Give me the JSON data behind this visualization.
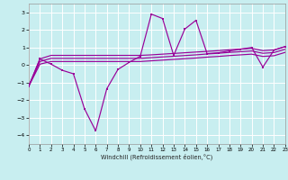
{
  "xlabel": "Windchill (Refroidissement éolien,°C)",
  "bg_color": "#c8eef0",
  "grid_color": "#ffffff",
  "line_color": "#990099",
  "xlim": [
    0,
    23
  ],
  "ylim": [
    -4.5,
    3.5
  ],
  "yticks": [
    -4,
    -3,
    -2,
    -1,
    0,
    1,
    2,
    3
  ],
  "xticks": [
    0,
    1,
    2,
    3,
    4,
    5,
    6,
    7,
    8,
    9,
    10,
    11,
    12,
    13,
    14,
    15,
    16,
    17,
    18,
    19,
    20,
    21,
    22,
    23
  ],
  "x": [
    0,
    1,
    2,
    3,
    4,
    5,
    6,
    7,
    8,
    9,
    10,
    11,
    12,
    13,
    14,
    15,
    16,
    17,
    18,
    19,
    20,
    21,
    22,
    23
  ],
  "main_y": [
    -1.2,
    0.35,
    0.05,
    -0.3,
    -0.5,
    -2.5,
    -3.75,
    -1.35,
    -0.25,
    0.15,
    0.5,
    2.9,
    2.65,
    0.55,
    2.05,
    2.55,
    0.65,
    0.7,
    0.8,
    0.9,
    1.0,
    -0.12,
    0.85,
    1.05
  ],
  "line1_y": [
    -1.2,
    0.35,
    0.55,
    0.55,
    0.55,
    0.55,
    0.55,
    0.55,
    0.55,
    0.55,
    0.55,
    0.58,
    0.62,
    0.66,
    0.7,
    0.74,
    0.78,
    0.82,
    0.87,
    0.91,
    0.95,
    0.82,
    0.86,
    1.05
  ],
  "line2_y": [
    -1.2,
    0.2,
    0.38,
    0.38,
    0.38,
    0.38,
    0.38,
    0.38,
    0.38,
    0.38,
    0.38,
    0.42,
    0.46,
    0.5,
    0.54,
    0.58,
    0.63,
    0.67,
    0.72,
    0.76,
    0.8,
    0.67,
    0.71,
    0.9
  ],
  "line3_y": [
    -1.2,
    0.05,
    0.2,
    0.2,
    0.2,
    0.2,
    0.2,
    0.2,
    0.2,
    0.2,
    0.2,
    0.24,
    0.28,
    0.32,
    0.36,
    0.4,
    0.45,
    0.49,
    0.54,
    0.58,
    0.62,
    0.49,
    0.53,
    0.72
  ]
}
